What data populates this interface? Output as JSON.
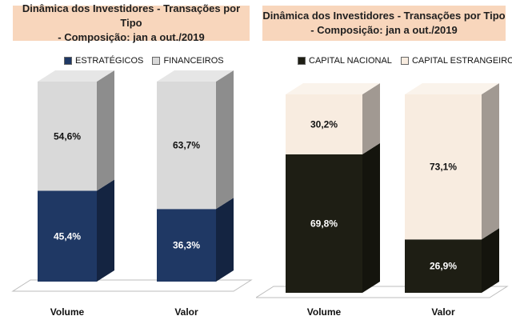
{
  "chart_data": [
    {
      "type": "bar",
      "stacked": true,
      "percent": true,
      "title": "Dinâmica dos Investidores - Transações por Tipo - Composição: jan a out./2019",
      "title_lines": [
        "Dinâmica dos Investidores - Transações por Tipo",
        "- Composição: jan a out./2019"
      ],
      "categories": [
        "Volume",
        "Valor"
      ],
      "series": [
        {
          "name": "ESTRATÉGICOS",
          "values": [
            45.4,
            36.3
          ],
          "labels": [
            "45,4%",
            "36,3%"
          ],
          "color": "#1f3864",
          "label_color": "#ffffff"
        },
        {
          "name": "FINANCEIROS",
          "values": [
            54.6,
            63.7
          ],
          "labels": [
            "54,6%",
            "63,7%"
          ],
          "color": "#d9d9d9",
          "label_color": "#111111"
        }
      ],
      "ylim": [
        0,
        100
      ],
      "legend_position": "top"
    },
    {
      "type": "bar",
      "stacked": true,
      "percent": true,
      "title": "Dinâmica dos Investidores - Transações por Tipo - Composição: jan a out./2019",
      "title_lines": [
        "Dinâmica dos Investidores - Transações por Tipo",
        "- Composição: jan a out./2019"
      ],
      "categories": [
        "Volume",
        "Valor"
      ],
      "series": [
        {
          "name": "CAPITAL NACIONAL",
          "values": [
            69.8,
            26.9
          ],
          "labels": [
            "69,8%",
            "26,9%"
          ],
          "color": "#1e1e14",
          "label_color": "#ffffff"
        },
        {
          "name": "CAPITAL ESTRANGEIRO",
          "values": [
            30.2,
            73.1
          ],
          "labels": [
            "30,2%",
            "73,1%"
          ],
          "color": "#f8ece0",
          "label_color": "#111111"
        }
      ],
      "ylim": [
        0,
        100
      ],
      "legend_position": "top"
    }
  ]
}
